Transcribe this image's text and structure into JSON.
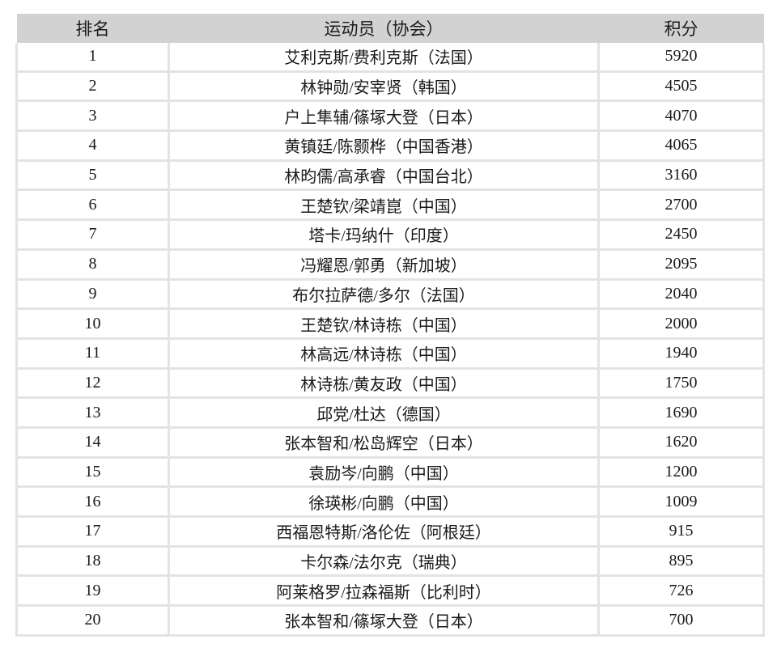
{
  "table": {
    "headers": [
      "排名",
      "运动员（协会）",
      "积分"
    ],
    "rows": [
      {
        "rank": "1",
        "players": "艾利克斯/费利克斯（法国）",
        "points": "5920"
      },
      {
        "rank": "2",
        "players": "林钟勋/安宰贤（韩国）",
        "points": "4505"
      },
      {
        "rank": "3",
        "players": "户上隼辅/篠塚大登（日本）",
        "points": "4070"
      },
      {
        "rank": "4",
        "players": "黄镇廷/陈颢桦（中国香港）",
        "points": "4065"
      },
      {
        "rank": "5",
        "players": "林昀儒/高承睿（中国台北）",
        "points": "3160"
      },
      {
        "rank": "6",
        "players": "王楚钦/梁靖崑（中国）",
        "points": "2700"
      },
      {
        "rank": "7",
        "players": "塔卡/玛纳什（印度）",
        "points": "2450"
      },
      {
        "rank": "8",
        "players": "冯耀恩/郭勇（新加坡）",
        "points": "2095"
      },
      {
        "rank": "9",
        "players": "布尔拉萨德/多尔（法国）",
        "points": "2040"
      },
      {
        "rank": "10",
        "players": "王楚钦/林诗栋（中国）",
        "points": "2000"
      },
      {
        "rank": "11",
        "players": "林高远/林诗栋（中国）",
        "points": "1940"
      },
      {
        "rank": "12",
        "players": "林诗栋/黄友政（中国）",
        "points": "1750"
      },
      {
        "rank": "13",
        "players": "邱党/杜达（德国）",
        "points": "1690"
      },
      {
        "rank": "14",
        "players": "张本智和/松岛辉空（日本）",
        "points": "1620"
      },
      {
        "rank": "15",
        "players": "袁励岑/向鹏（中国）",
        "points": "1200"
      },
      {
        "rank": "16",
        "players": "徐瑛彬/向鹏（中国）",
        "points": "1009"
      },
      {
        "rank": "17",
        "players": "西福恩特斯/洛伦佐（阿根廷）",
        "points": "915"
      },
      {
        "rank": "18",
        "players": "卡尔森/法尔克（瑞典）",
        "points": "895"
      },
      {
        "rank": "19",
        "players": "阿莱格罗/拉森福斯（比利时）",
        "points": "726"
      },
      {
        "rank": "20",
        "players": "张本智和/篠塚大登（日本）",
        "points": "700"
      }
    ]
  }
}
